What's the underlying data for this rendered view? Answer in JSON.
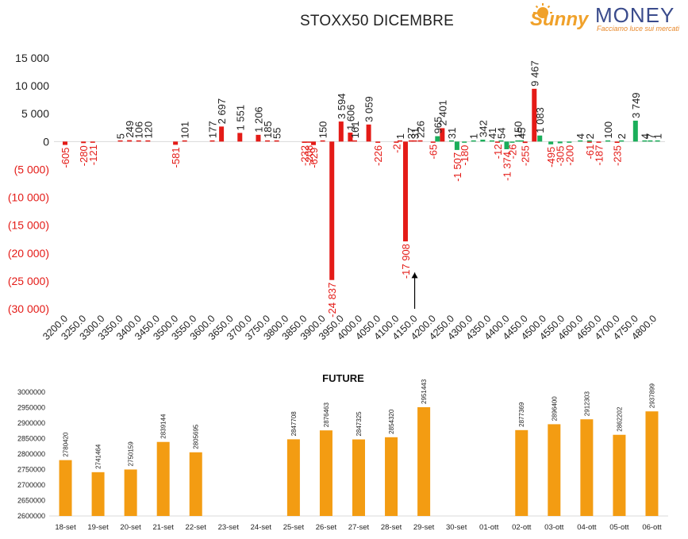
{
  "brand": {
    "name_script": "Sunny",
    "name_caps": "MONEY",
    "tagline": "Facciamo luce sui mercati"
  },
  "colors": {
    "positive": "#1aae5a",
    "negative": "#e41b17",
    "future": "#f39c12",
    "brand_orange": "#f0a12a",
    "brand_blue": "#3a4b8c"
  },
  "chart_data": [
    {
      "type": "bar",
      "title": "STOXX50 DICEMBRE",
      "ylim": [
        -30000,
        15000
      ],
      "yticks": [
        15000,
        10000,
        5000,
        0,
        -5000,
        -10000,
        -15000,
        -20000,
        -25000,
        -30000
      ],
      "ytick_labels": [
        "15 000",
        "10 000",
        "5 000",
        "0",
        "(5 000)",
        "(10 000)",
        "(15 000)",
        "(20 000)",
        "(25 000)",
        "(30 000)"
      ],
      "categories": [
        "3200.0",
        "3250.0",
        "3300.0",
        "3350.0",
        "3400.0",
        "3450.0",
        "3500.0",
        "3550.0",
        "3600.0",
        "3650.0",
        "3700.0",
        "3750.0",
        "3800.0",
        "3850.0",
        "3900.0",
        "3950.0",
        "4000.0",
        "4050.0",
        "4100.0",
        "4150.0",
        "4200.0",
        "4250.0",
        "4300.0",
        "4350.0",
        "4400.0",
        "4450.0",
        "4500.0",
        "4550.0",
        "4600.0",
        "4650.0",
        "4700.0",
        "4750.0",
        "4800.0"
      ],
      "series": [
        {
          "color": "#e41b17",
          "points": [
            {
              "x": 3200,
              "y": -605,
              "label": "-605"
            },
            {
              "x": 3250,
              "y": -280,
              "label": "-280"
            },
            {
              "x": 3275,
              "y": -121,
              "label": "-121"
            },
            {
              "x": 3350,
              "y": 5,
              "label": "5"
            },
            {
              "x": 3375,
              "y": 249,
              "label": "249"
            },
            {
              "x": 3400,
              "y": 106,
              "label": "106"
            },
            {
              "x": 3425,
              "y": 120,
              "label": "120"
            },
            {
              "x": 3500,
              "y": -581,
              "label": "-581"
            },
            {
              "x": 3525,
              "y": 101,
              "label": "101"
            },
            {
              "x": 3600,
              "y": 177,
              "label": "177"
            },
            {
              "x": 3625,
              "y": 2697,
              "label": "2 697"
            },
            {
              "x": 3675,
              "y": 1551,
              "label": "1 551"
            },
            {
              "x": 3725,
              "y": 1206,
              "label": "1 206"
            },
            {
              "x": 3750,
              "y": 185,
              "label": "185"
            },
            {
              "x": 3775,
              "y": 55,
              "label": "55"
            },
            {
              "x": 3850,
              "y": -232,
              "label": "-232"
            },
            {
              "x": 3862,
              "y": -208,
              "label": "-208"
            },
            {
              "x": 3875,
              "y": -629,
              "label": "-629"
            },
            {
              "x": 3900,
              "y": 150,
              "label": "150"
            },
            {
              "x": 3925,
              "y": -24837,
              "label": "-24 837"
            },
            {
              "x": 3950,
              "y": 3594,
              "label": "3 594"
            },
            {
              "x": 3975,
              "y": 1606,
              "label": "1 606"
            },
            {
              "x": 3987,
              "y": 161,
              "label": "161"
            },
            {
              "x": 4025,
              "y": 3059,
              "label": "3 059"
            },
            {
              "x": 4050,
              "y": -226,
              "label": "-226"
            },
            {
              "x": 4100,
              "y": -2,
              "label": "-2"
            },
            {
              "x": 4110,
              "y": 1,
              "label": "1"
            },
            {
              "x": 4125,
              "y": -17908,
              "label": "-17 908"
            },
            {
              "x": 4140,
              "y": 37,
              "label": "37"
            },
            {
              "x": 4150,
              "y": 31,
              "label": "31"
            },
            {
              "x": 4165,
              "y": 226,
              "label": "226"
            },
            {
              "x": 4200,
              "y": -65,
              "label": "-65"
            },
            {
              "x": 4225,
              "y": 2401,
              "label": "2 401"
            },
            {
              "x": 4375,
              "y": -12,
              "label": "-12"
            },
            {
              "x": 4450,
              "y": -255,
              "label": "-255"
            },
            {
              "x": 4475,
              "y": 9467,
              "label": "9 467"
            },
            {
              "x": 4625,
              "y": -61,
              "label": "-61"
            },
            {
              "x": 4650,
              "y": -187,
              "label": "-187"
            },
            {
              "x": 4700,
              "y": -235,
              "label": "-235"
            }
          ]
        },
        {
          "color": "#1aae5a",
          "points": [
            {
              "x": 4212,
              "y": 965,
              "label": "965"
            },
            {
              "x": 4250,
              "y": 31,
              "label": "31"
            },
            {
              "x": 4265,
              "y": -1507,
              "label": "-1 507"
            },
            {
              "x": 4285,
              "y": -180,
              "label": "-180"
            },
            {
              "x": 4310,
              "y": 1,
              "label": "1"
            },
            {
              "x": 4335,
              "y": 342,
              "label": "342"
            },
            {
              "x": 4360,
              "y": 41,
              "label": "41"
            },
            {
              "x": 4385,
              "y": 54,
              "label": "54"
            },
            {
              "x": 4400,
              "y": -1374,
              "label": "-1 374"
            },
            {
              "x": 4415,
              "y": -26,
              "label": "-26"
            },
            {
              "x": 4430,
              "y": 150,
              "label": "150"
            },
            {
              "x": 4440,
              "y": 45,
              "label": "45"
            },
            {
              "x": 4490,
              "y": 1083,
              "label": "1 083"
            },
            {
              "x": 4520,
              "y": -495,
              "label": "-495"
            },
            {
              "x": 4545,
              "y": -305,
              "label": "-305"
            },
            {
              "x": 4570,
              "y": -200,
              "label": "-200"
            },
            {
              "x": 4600,
              "y": 4,
              "label": "4"
            },
            {
              "x": 4625,
              "y": 2,
              "label": "2"
            },
            {
              "x": 4675,
              "y": 100,
              "label": "100"
            },
            {
              "x": 4712,
              "y": 2,
              "label": "2"
            },
            {
              "x": 4750,
              "y": 3749,
              "label": "3 749"
            },
            {
              "x": 4775,
              "y": 4,
              "label": "4"
            },
            {
              "x": 4790,
              "y": 7,
              "label": "7"
            },
            {
              "x": 4810,
              "y": 1,
              "label": "1"
            }
          ]
        }
      ],
      "annotations": [
        {
          "type": "arrow",
          "x": 4150,
          "y_from": -30000,
          "y_to": -23500
        }
      ]
    },
    {
      "type": "bar",
      "title": "FUTURE",
      "ylim": [
        2600000,
        3000000
      ],
      "yticks": [
        3000000,
        2950000,
        2900000,
        2850000,
        2800000,
        2750000,
        2700000,
        2650000,
        2600000
      ],
      "ytick_labels": [
        "3000000",
        "2950000",
        "2900000",
        "2850000",
        "2800000",
        "2750000",
        "2700000",
        "2650000",
        "2600000"
      ],
      "categories": [
        "18-set",
        "19-set",
        "20-set",
        "21-set",
        "22-set",
        "23-set",
        "24-set",
        "25-set",
        "26-set",
        "27-set",
        "28-set",
        "29-set",
        "30-set",
        "01-ott",
        "02-ott",
        "03-ott",
        "04-ott",
        "05-ott",
        "06-ott"
      ],
      "values": [
        2780420,
        2741464,
        2750159,
        2839144,
        2805695,
        null,
        null,
        2847708,
        2876463,
        2847325,
        2854320,
        2951443,
        null,
        null,
        2877369,
        2896400,
        2912303,
        2862202,
        2937899
      ],
      "value_labels": [
        "2780420",
        "2741464",
        "2750159",
        "2839144",
        "2805695",
        "",
        "",
        "2847708",
        "2876463",
        "2847325",
        "2854320",
        "2951443",
        "",
        "",
        "2877369",
        "2896400",
        "2912303",
        "2862202",
        "2937899"
      ],
      "color": "#f39c12"
    }
  ]
}
